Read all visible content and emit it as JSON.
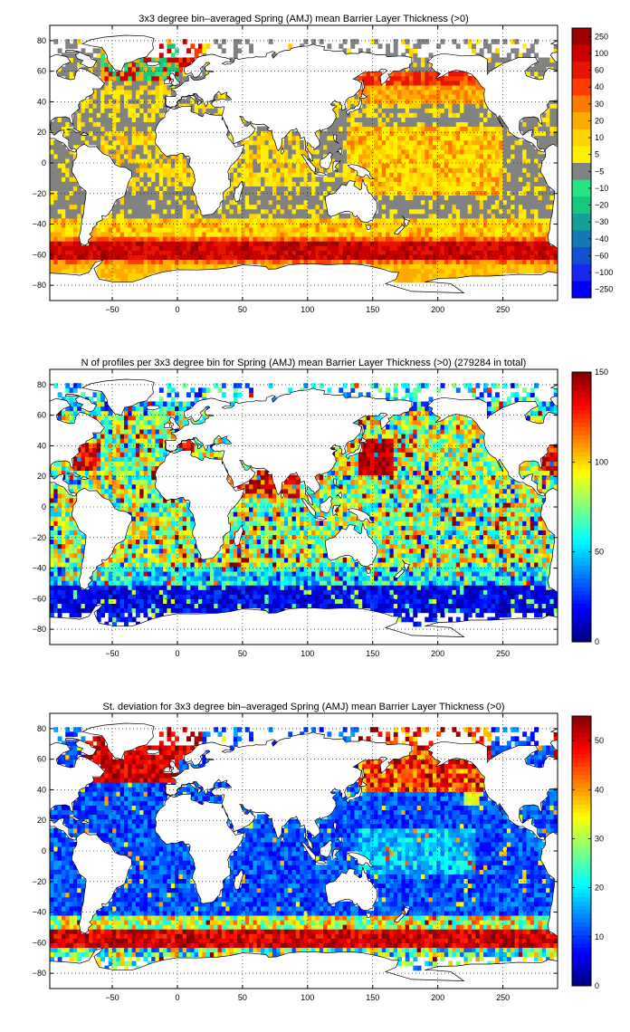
{
  "maps": [
    {
      "title": "3x3 degree bin–averaged Spring (AMJ) mean Barrier Layer Thickness (>0)",
      "x_ticks": [
        "−50",
        "0",
        "50",
        "100",
        "150",
        "200",
        "250"
      ],
      "y_ticks": [
        "80",
        "60",
        "40",
        "20",
        "0",
        "−20",
        "−40",
        "−60",
        "−80"
      ],
      "colorbar": {
        "kind": "discrete",
        "labels": [
          "250",
          "100",
          "60",
          "40",
          "30",
          "20",
          "10",
          "5",
          "−5",
          "−10",
          "−20",
          "−30",
          "−40",
          "−60",
          "−100",
          "−250"
        ],
        "colors": [
          "#9d0000",
          "#c80000",
          "#e61400",
          "#ff3c00",
          "#ff7800",
          "#ffaa00",
          "#ffd200",
          "#fff000",
          "#828282",
          "#23e682",
          "#14c87d",
          "#14a096",
          "#1478b4",
          "#1450d2",
          "#1428f0",
          "#0000ff"
        ]
      },
      "palette": "bins"
    },
    {
      "title": "N of profiles per 3x3 degree bin for Spring (AMJ) mean Barrier Layer Thickness (>0) (279284 in total)",
      "x_ticks": [
        "−50",
        "0",
        "50",
        "100",
        "150",
        "200",
        "250"
      ],
      "y_ticks": [
        "80",
        "60",
        "40",
        "20",
        "0",
        "−20",
        "−40",
        "−60",
        "−80"
      ],
      "colorbar": {
        "kind": "jet",
        "range": [
          0,
          150
        ],
        "tick_labels": [
          "150",
          "100",
          "50",
          "0"
        ]
      },
      "palette": "counts"
    },
    {
      "title": "St. deviation for 3x3 degree bin–averaged Spring (AMJ) mean Barrier Layer Thickness (>0)",
      "x_ticks": [
        "−50",
        "0",
        "50",
        "100",
        "150",
        "200",
        "250"
      ],
      "y_ticks": [
        "80",
        "60",
        "40",
        "20",
        "0",
        "−20",
        "−40",
        "−60",
        "−80"
      ],
      "colorbar": {
        "kind": "jet",
        "range": [
          0,
          55
        ],
        "tick_labels": [
          "50",
          "40",
          "30",
          "20",
          "10",
          "0"
        ]
      },
      "palette": "stdev"
    }
  ],
  "map_extent": {
    "lon": [
      -98,
      292
    ],
    "lat": [
      -90,
      90
    ]
  },
  "land_color": "#ffffff",
  "coast_color": "#000000"
}
